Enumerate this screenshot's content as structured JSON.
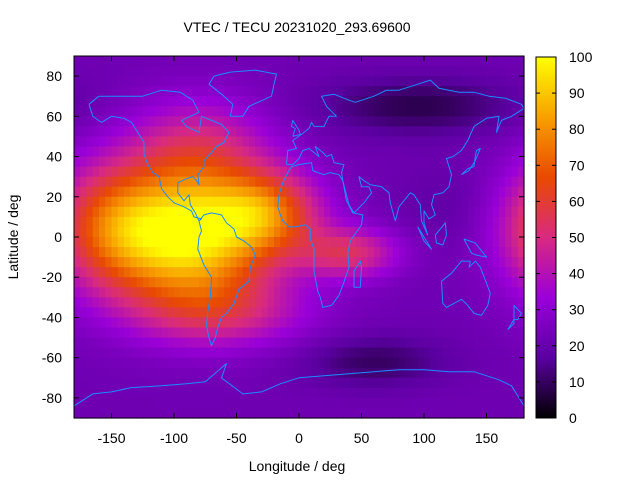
{
  "chart_data": {
    "type": "heatmap",
    "title": "VTEC / TECU 20231020_293.69600",
    "xlabel": "Longitude / deg",
    "ylabel": "Latitude / deg",
    "xlim": [
      -180,
      180
    ],
    "ylim": [
      -90,
      90
    ],
    "xticks": [
      -150,
      -100,
      -50,
      0,
      50,
      100,
      150
    ],
    "yticks": [
      80,
      60,
      40,
      20,
      0,
      -20,
      -40,
      -60,
      -80
    ],
    "colorbar": {
      "range": [
        0,
        100
      ],
      "ticks": [
        100,
        90,
        80,
        70,
        60,
        50,
        40,
        30,
        20,
        10,
        0
      ],
      "colormap": [
        "#000000",
        "#5a00a0",
        "#9a00d8",
        "#d82a80",
        "#e84a00",
        "#f8a000",
        "#ffff00"
      ]
    },
    "grid": false,
    "background_value": 22,
    "features": [
      {
        "lon": -85,
        "lat": 0,
        "sigma_lon": 45,
        "sigma_lat": 24,
        "amp": 72
      },
      {
        "lon": -150,
        "lat": 5,
        "sigma_lon": 35,
        "sigma_lat": 22,
        "amp": 38
      },
      {
        "lon": -25,
        "lat": 12,
        "sigma_lon": 30,
        "sigma_lat": 14,
        "amp": 38
      },
      {
        "lon": 40,
        "lat": -8,
        "sigma_lon": 28,
        "sigma_lat": 9,
        "amp": 30
      },
      {
        "lon": -80,
        "lat": 45,
        "sigma_lon": 40,
        "sigma_lat": 18,
        "amp": 22
      },
      {
        "lon": -60,
        "lat": -38,
        "sigma_lon": 50,
        "sigma_lat": 12,
        "amp": 20
      },
      {
        "lon": 95,
        "lat": 65,
        "sigma_lon": 55,
        "sigma_lat": 10,
        "amp": -14
      },
      {
        "lon": 60,
        "lat": -62,
        "sigma_lon": 40,
        "sigma_lat": 9,
        "amp": -12
      },
      {
        "lon": 120,
        "lat": 15,
        "sigma_lon": 30,
        "sigma_lat": 15,
        "amp": -4
      }
    ]
  }
}
